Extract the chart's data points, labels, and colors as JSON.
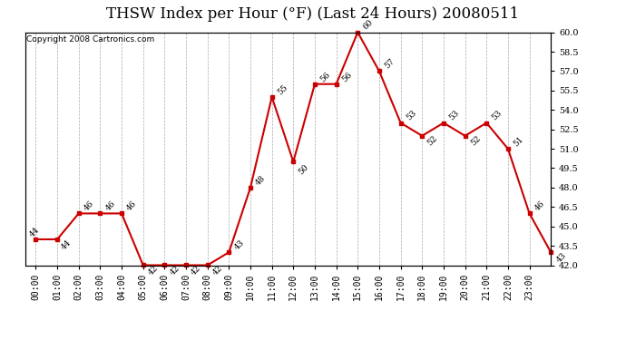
{
  "title": "THSW Index per Hour (°F) (Last 24 Hours) 20080511",
  "copyright": "Copyright 2008 Cartronics.com",
  "hours": [
    "00:00",
    "01:00",
    "02:00",
    "03:00",
    "04:00",
    "05:00",
    "06:00",
    "07:00",
    "08:00",
    "09:00",
    "10:00",
    "11:00",
    "12:00",
    "13:00",
    "14:00",
    "15:00",
    "16:00",
    "17:00",
    "18:00",
    "19:00",
    "20:00",
    "21:00",
    "22:00",
    "23:00"
  ],
  "values": [
    44,
    44,
    46,
    46,
    46,
    42,
    42,
    42,
    42,
    43,
    48,
    55,
    50,
    56,
    56,
    60,
    57,
    53,
    52,
    53,
    52,
    53,
    51,
    46,
    43
  ],
  "ylim": [
    42.0,
    60.0
  ],
  "yticks": [
    42.0,
    43.5,
    45.0,
    46.5,
    48.0,
    49.5,
    51.0,
    52.5,
    54.0,
    55.5,
    57.0,
    58.5,
    60.0
  ],
  "line_color": "#cc0000",
  "bg_color": "#ffffff",
  "grid_color": "#aaaaaa",
  "title_fontsize": 12,
  "copyright_fontsize": 6.5,
  "tick_fontsize": 7,
  "label_fontsize": 6.5
}
